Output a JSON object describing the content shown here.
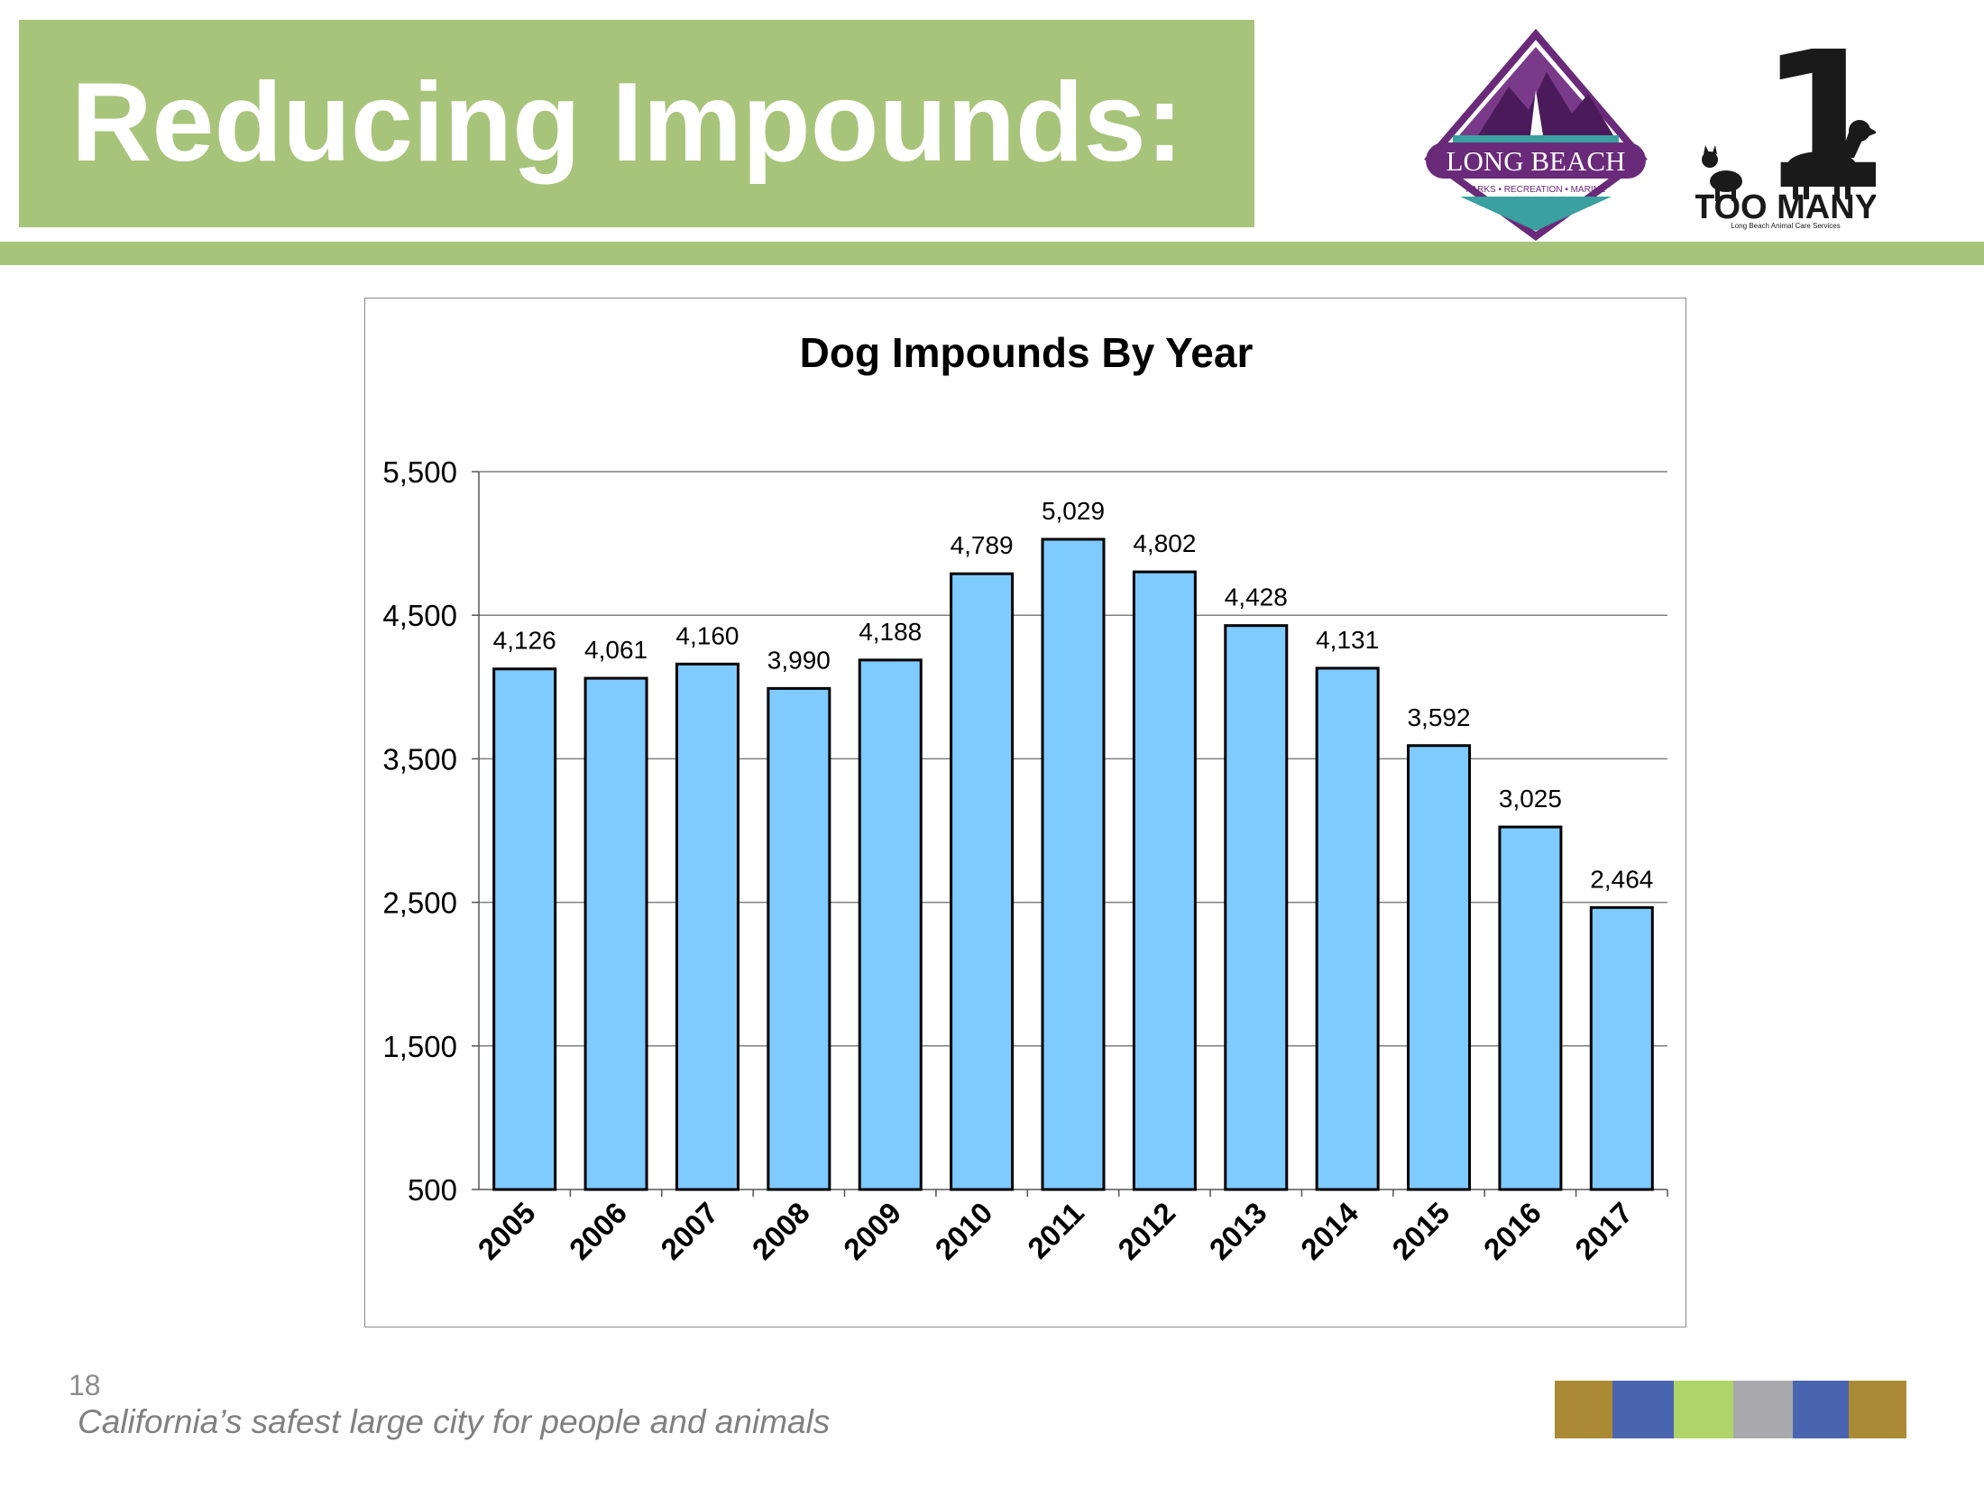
{
  "slide": {
    "title": "Reducing Impounds:",
    "page_number": "18",
    "footer": "California’s safest large city for people and animals",
    "colors": {
      "banner": "#a8c47a",
      "bar_fill": "#7fcaff",
      "purple": "#6a2a7a",
      "teal": "#3aa0a0"
    },
    "footer_swatches": [
      "#ab8a35",
      "#4a65b0",
      "#aed46a",
      "#a9a9ad",
      "#4a65b0",
      "#ab8a35"
    ]
  },
  "logos": {
    "long_beach": {
      "name": "LONG BEACH",
      "sub": "PARKS • RECREATION • MARINE",
      "icon": "long-beach-logo"
    },
    "one_too_many": {
      "numeral": "1",
      "name": "TOO MANY",
      "sub": "Long Beach Animal Care Services",
      "icon": "one-too-many-logo"
    }
  },
  "chart_data": {
    "type": "bar",
    "title": "Dog Impounds By Year",
    "xlabel": "",
    "ylabel": "",
    "categories": [
      "2005",
      "2006",
      "2007",
      "2008",
      "2009",
      "2010",
      "2011",
      "2012",
      "2013",
      "2014",
      "2015",
      "2016",
      "2017"
    ],
    "values": [
      4126,
      4061,
      4160,
      3990,
      4188,
      4789,
      5029,
      4802,
      4428,
      4131,
      3592,
      3025,
      2464
    ],
    "value_labels": [
      "4,126",
      "4,061",
      "4,160",
      "3,990",
      "4,188",
      "4,789",
      "5,029",
      "4,802",
      "4,428",
      "4,131",
      "3,592",
      "3,025",
      "2,464"
    ],
    "ylim": [
      500,
      5500
    ],
    "yticks": [
      500,
      1500,
      2500,
      3500,
      4500,
      5500
    ],
    "ytick_labels": [
      "500",
      "1,500",
      "2,500",
      "3,500",
      "4,500",
      "5,500"
    ],
    "grid": true,
    "legend": "none"
  }
}
